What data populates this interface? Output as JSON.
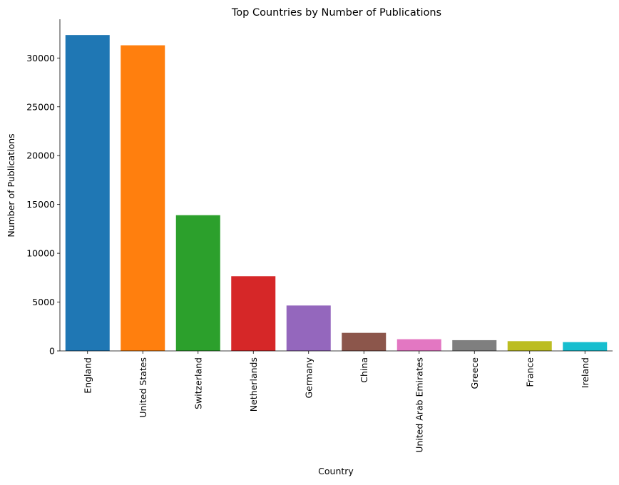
{
  "chart_data": {
    "type": "bar",
    "title": "Top Countries by Number of Publications",
    "xlabel": "Country",
    "ylabel": "Number of Publications",
    "categories": [
      "England",
      "United States",
      "Switzerland",
      "Netherlands",
      "Germany",
      "China",
      "United Arab Emirates",
      "Greece",
      "France",
      "Ireland"
    ],
    "values": [
      32350,
      31300,
      13900,
      7650,
      4650,
      1850,
      1200,
      1100,
      1000,
      900
    ],
    "colors": [
      "#1f77b4",
      "#ff7f0e",
      "#2ca02c",
      "#d62728",
      "#9467bd",
      "#8c564b",
      "#e377c2",
      "#7f7f7f",
      "#bcbd22",
      "#17becf"
    ],
    "yticks": [
      0,
      5000,
      10000,
      15000,
      20000,
      25000,
      30000
    ],
    "ylim": [
      0,
      33967
    ],
    "grid": false,
    "legend": "none"
  }
}
